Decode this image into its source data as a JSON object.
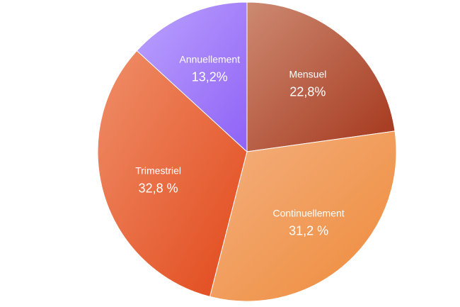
{
  "chart_data": {
    "type": "pie",
    "title": "",
    "start_angle_deg": 0,
    "direction": "clockwise",
    "slices": [
      {
        "label": "Mensuel",
        "value": 22.8,
        "value_label": "22,8%",
        "gradient": [
          "#cd8a72",
          "#a4361b"
        ]
      },
      {
        "label": "Continuellement",
        "value": 31.2,
        "value_label": "31,2 %",
        "gradient": [
          "#f4b07f",
          "#ee8a3a"
        ]
      },
      {
        "label": "Trimestriel",
        "value": 32.8,
        "value_label": "32,8 %",
        "gradient": [
          "#ef8f69",
          "#e2481b"
        ]
      },
      {
        "label": "Annuellement",
        "value": 13.2,
        "value_label": "13,2%",
        "gradient": [
          "#bba2fe",
          "#8f62f6"
        ]
      }
    ]
  }
}
